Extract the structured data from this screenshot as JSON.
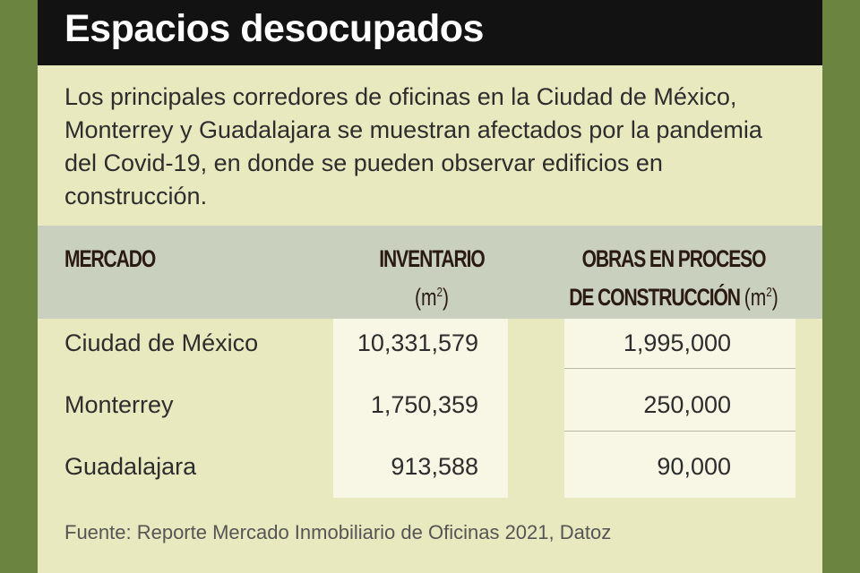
{
  "title": "Espacios desocupados",
  "intro": "Los principales corredores de oficinas en la Ciudad de México, Monterrey y Guadalajara se muestran afectados por la pandemia del Covid-19, en donde se pueden observar edificios en construcción.",
  "table": {
    "headers": {
      "mercado": "MERCADO",
      "inventario": "INVENTARIO",
      "inventario_unit": "(m",
      "inventario_unit_sup": "2",
      "inventario_unit_close": ")",
      "obras_line1": "OBRAS EN PROCESO",
      "obras_line2": "DE CONSTRUCCIÓN",
      "obras_unit": "(m",
      "obras_unit_sup": "2",
      "obras_unit_close": ")"
    },
    "rows": [
      {
        "mercado": "Ciudad de México",
        "inventario": "10,331,579",
        "obras": "1,995,000"
      },
      {
        "mercado": "Monterrey",
        "inventario": "1,750,359",
        "obras": "250,000"
      },
      {
        "mercado": "Guadalajara",
        "inventario": "913,588",
        "obras": "90,000"
      }
    ]
  },
  "source": "Fuente: Reporte Mercado Inmobiliario de Oficinas 2021, Datoz",
  "colors": {
    "background": "#6b843f",
    "card": "#e9e9c0",
    "title_bar": "#121212",
    "header_band": "#c9d0bd",
    "value_cells": "#f8f6e4"
  }
}
